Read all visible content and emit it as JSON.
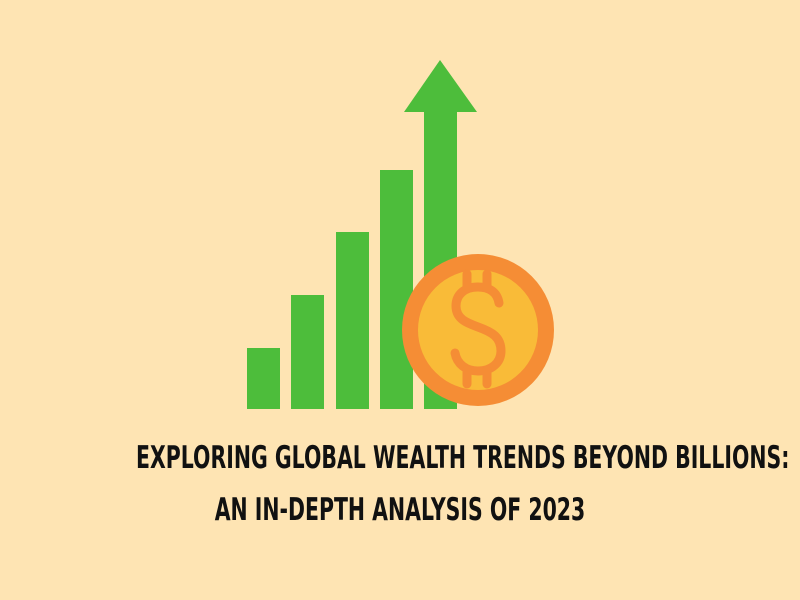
{
  "colors": {
    "background": "#FEE4B3",
    "bars": "#4DBD3B",
    "coin_outer": "#F58D35",
    "coin_inner": "#F9BB38",
    "dollar_sign": "#F58D35",
    "title_text": "#111111"
  },
  "icons": {
    "growth_arrow": "up-arrow-icon",
    "coin": "dollar-coin-icon"
  },
  "title": {
    "line1": "EXPLORING GLOBAL WEALTH TRENDS BEYOND BILLIONS:",
    "line2": "AN IN-DEPTH ANALYSIS OF 2023"
  }
}
